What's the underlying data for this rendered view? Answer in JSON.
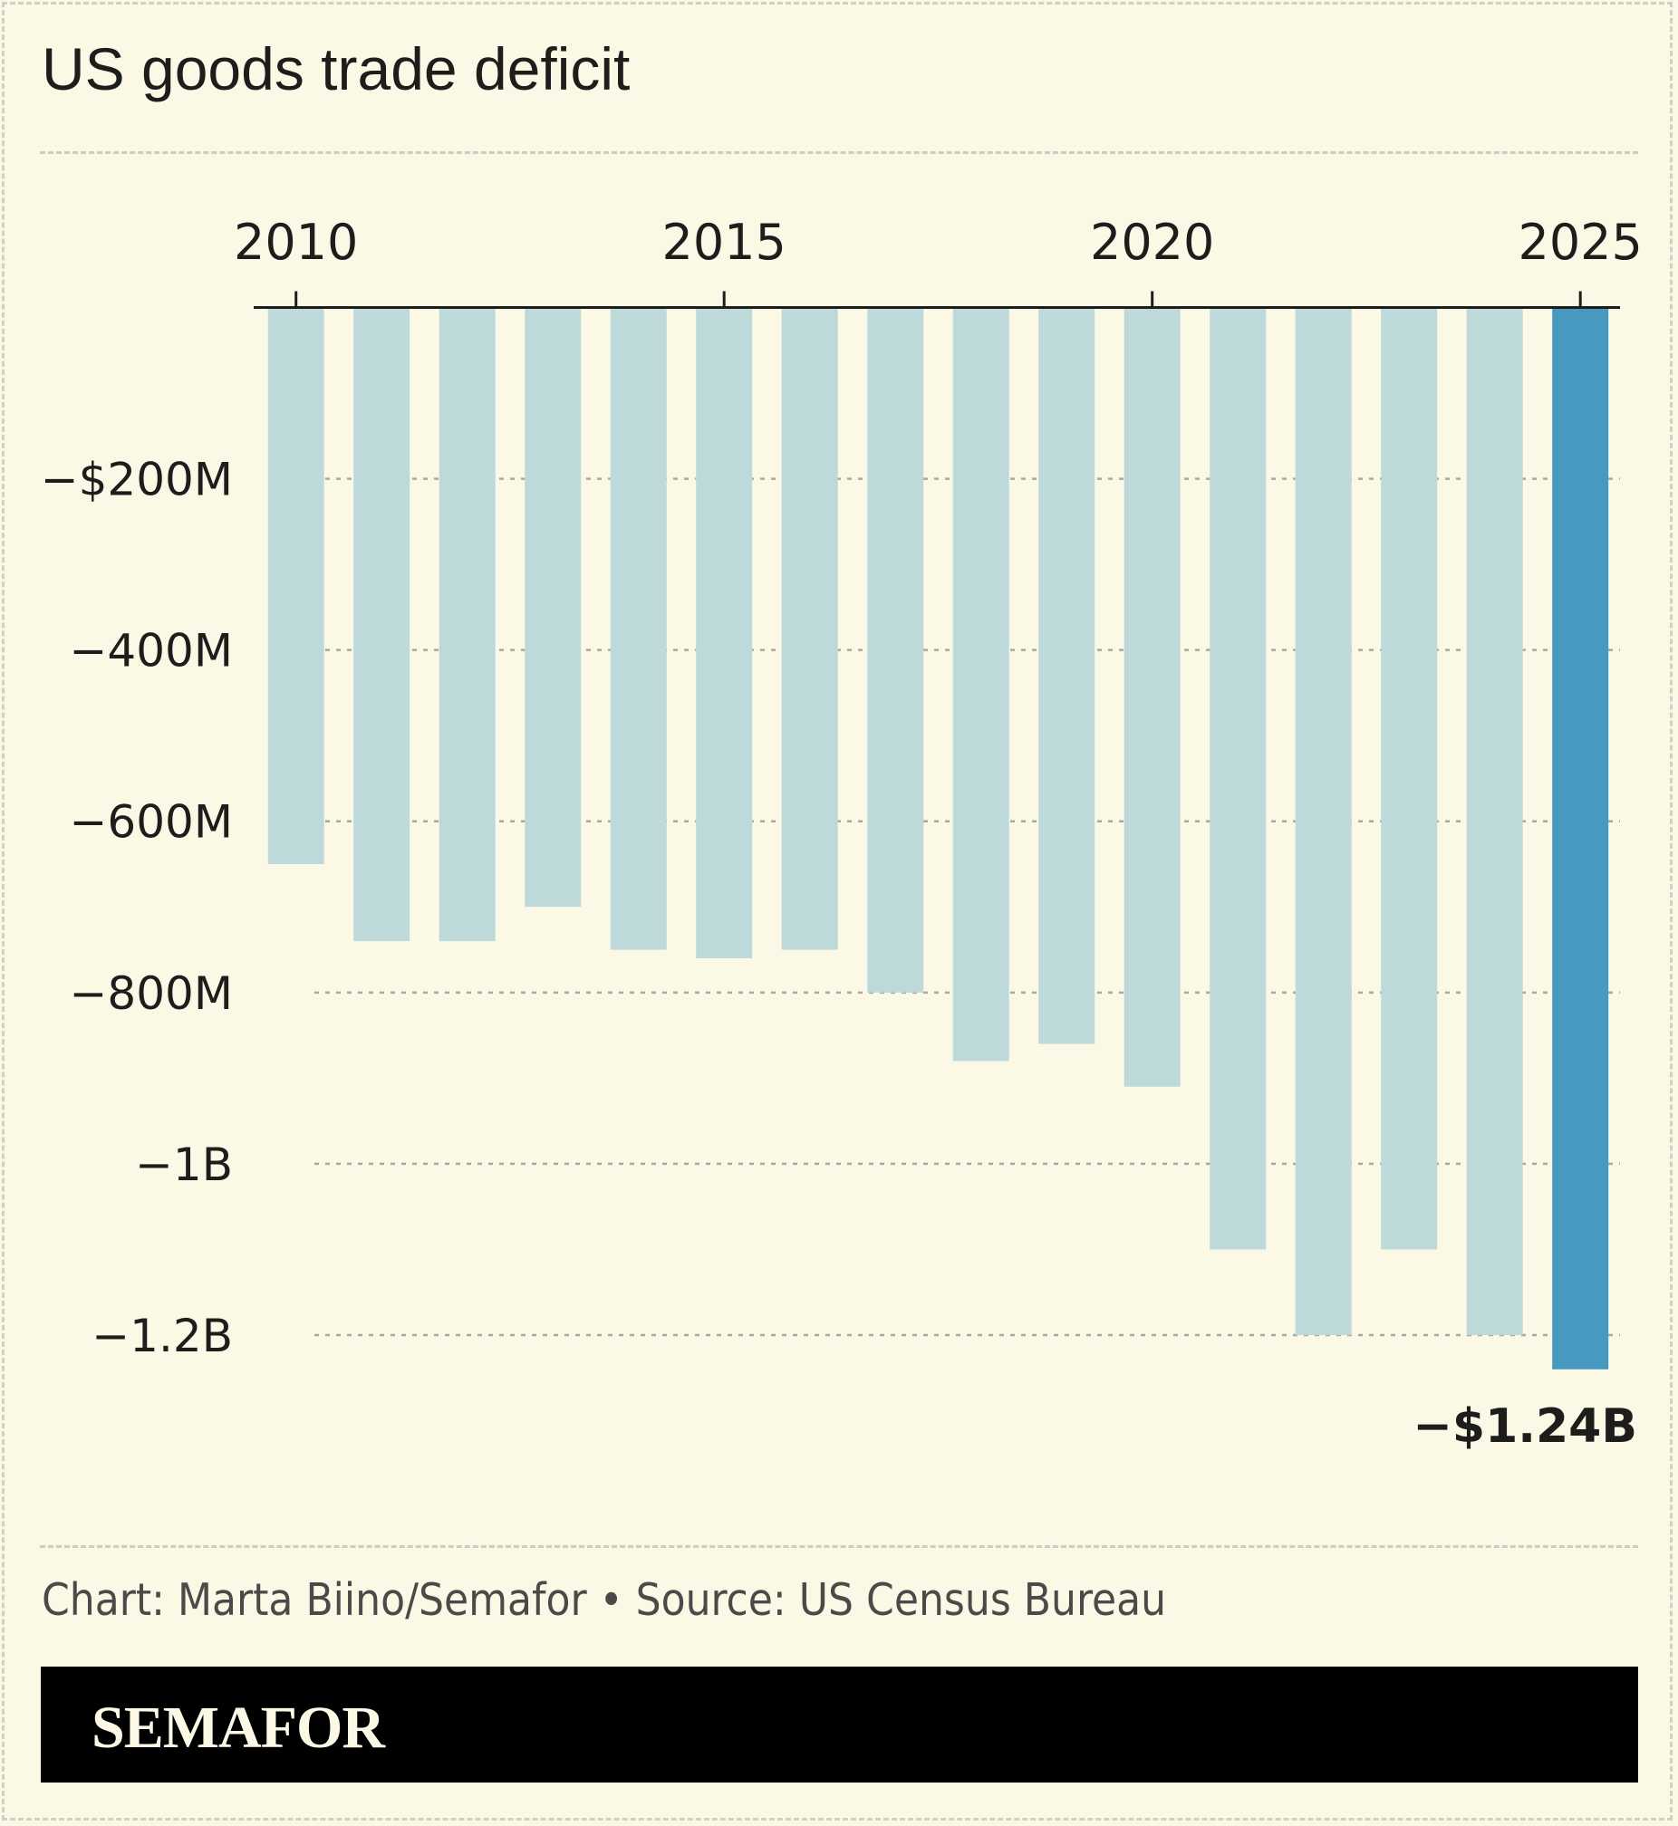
{
  "title": "US goods trade deficit",
  "footer": "Chart: Marta Biino/Semafor • Source: US Census Bureau",
  "brand": "SEMAFOR",
  "colors": {
    "background": "#fbf9e6",
    "bar": "#bdd9d9",
    "highlight": "#4899bf"
  },
  "chart_data": {
    "type": "bar",
    "title": "US goods trade deficit",
    "categories": [
      2010,
      2011,
      2012,
      2013,
      2014,
      2015,
      2016,
      2017,
      2018,
      2019,
      2020,
      2021,
      2022,
      2023,
      2024,
      2025
    ],
    "values": [
      -650,
      -740,
      -740,
      -700,
      -750,
      -760,
      -750,
      -800,
      -880,
      -860,
      -910,
      -1100,
      -1200,
      -1100,
      -1200,
      -1240
    ],
    "unit": "millions USD",
    "x_ticks": [
      "2010",
      "2015",
      "2020",
      "2025"
    ],
    "y_ticks": [
      {
        "value": -200,
        "label": "−$200M"
      },
      {
        "value": -400,
        "label": "−400M"
      },
      {
        "value": -600,
        "label": "−600M"
      },
      {
        "value": -800,
        "label": "−800M"
      },
      {
        "value": -1000,
        "label": "−1B"
      },
      {
        "value": -1200,
        "label": "−1.2B"
      }
    ],
    "ylim": [
      -1240,
      0
    ],
    "grid": true,
    "highlight_category": 2025,
    "annotation": "−$1.24B"
  }
}
